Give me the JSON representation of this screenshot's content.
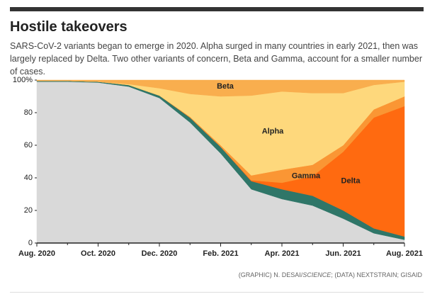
{
  "chart_data": {
    "type": "stacked_area",
    "title": "Hostile takeovers",
    "subtitle": "SARS-CoV-2 variants began to emerge in 2020. Alpha surged in many countries in early 2021, then was largely replaced by Delta. Two other variants of concern, Beta and Gamma, account for a smaller number of cases.",
    "credit": {
      "prefix": "(GRAPHIC) N. DESAI/",
      "italic": "SCIENCE",
      "suffix": "; (DATA) NEXTSTRAIN; GISAID"
    },
    "categories": [
      "Aug. 2020",
      null,
      "Oct. 2020",
      null,
      "Dec. 2020",
      null,
      "Feb. 2021",
      null,
      "Apr. 2021",
      null,
      "Jun. 2021",
      null,
      "Aug. 2021"
    ],
    "ylim": [
      0,
      100
    ],
    "yticks": [
      0,
      20,
      40,
      60,
      80,
      {
        "value": 100,
        "label": "100%"
      }
    ],
    "series": [
      {
        "color": "#d9d9d9",
        "values": [
          99,
          99,
          98.5,
          96,
          89,
          74,
          55,
          33,
          27,
          23,
          15,
          6,
          2
        ]
      },
      {
        "color": "#2f7668",
        "values": [
          0.5,
          0.5,
          0.5,
          1,
          1.5,
          3,
          4,
          5,
          6,
          6,
          5,
          3,
          2
        ]
      },
      {
        "name": "Delta",
        "color": "#ff6a10",
        "values": [
          0,
          0,
          0,
          0,
          0,
          0,
          0,
          0.5,
          4,
          12,
          36,
          68,
          80
        ]
      },
      {
        "name": "Gamma",
        "color": "#fa9634",
        "values": [
          0,
          0,
          0,
          0,
          0,
          0.5,
          1,
          3,
          8,
          7,
          4,
          5,
          6
        ]
      },
      {
        "name": "Alpha",
        "color": "#fed87c",
        "values": [
          0,
          0,
          0,
          0.5,
          4.5,
          14,
          30,
          49,
          48,
          44,
          32,
          15,
          9
        ]
      },
      {
        "name": "Beta",
        "color": "#f9ae4e",
        "values": [
          0.5,
          0.5,
          1,
          2.5,
          5,
          8.5,
          10,
          9.5,
          7,
          8,
          8,
          3,
          1
        ]
      }
    ]
  }
}
